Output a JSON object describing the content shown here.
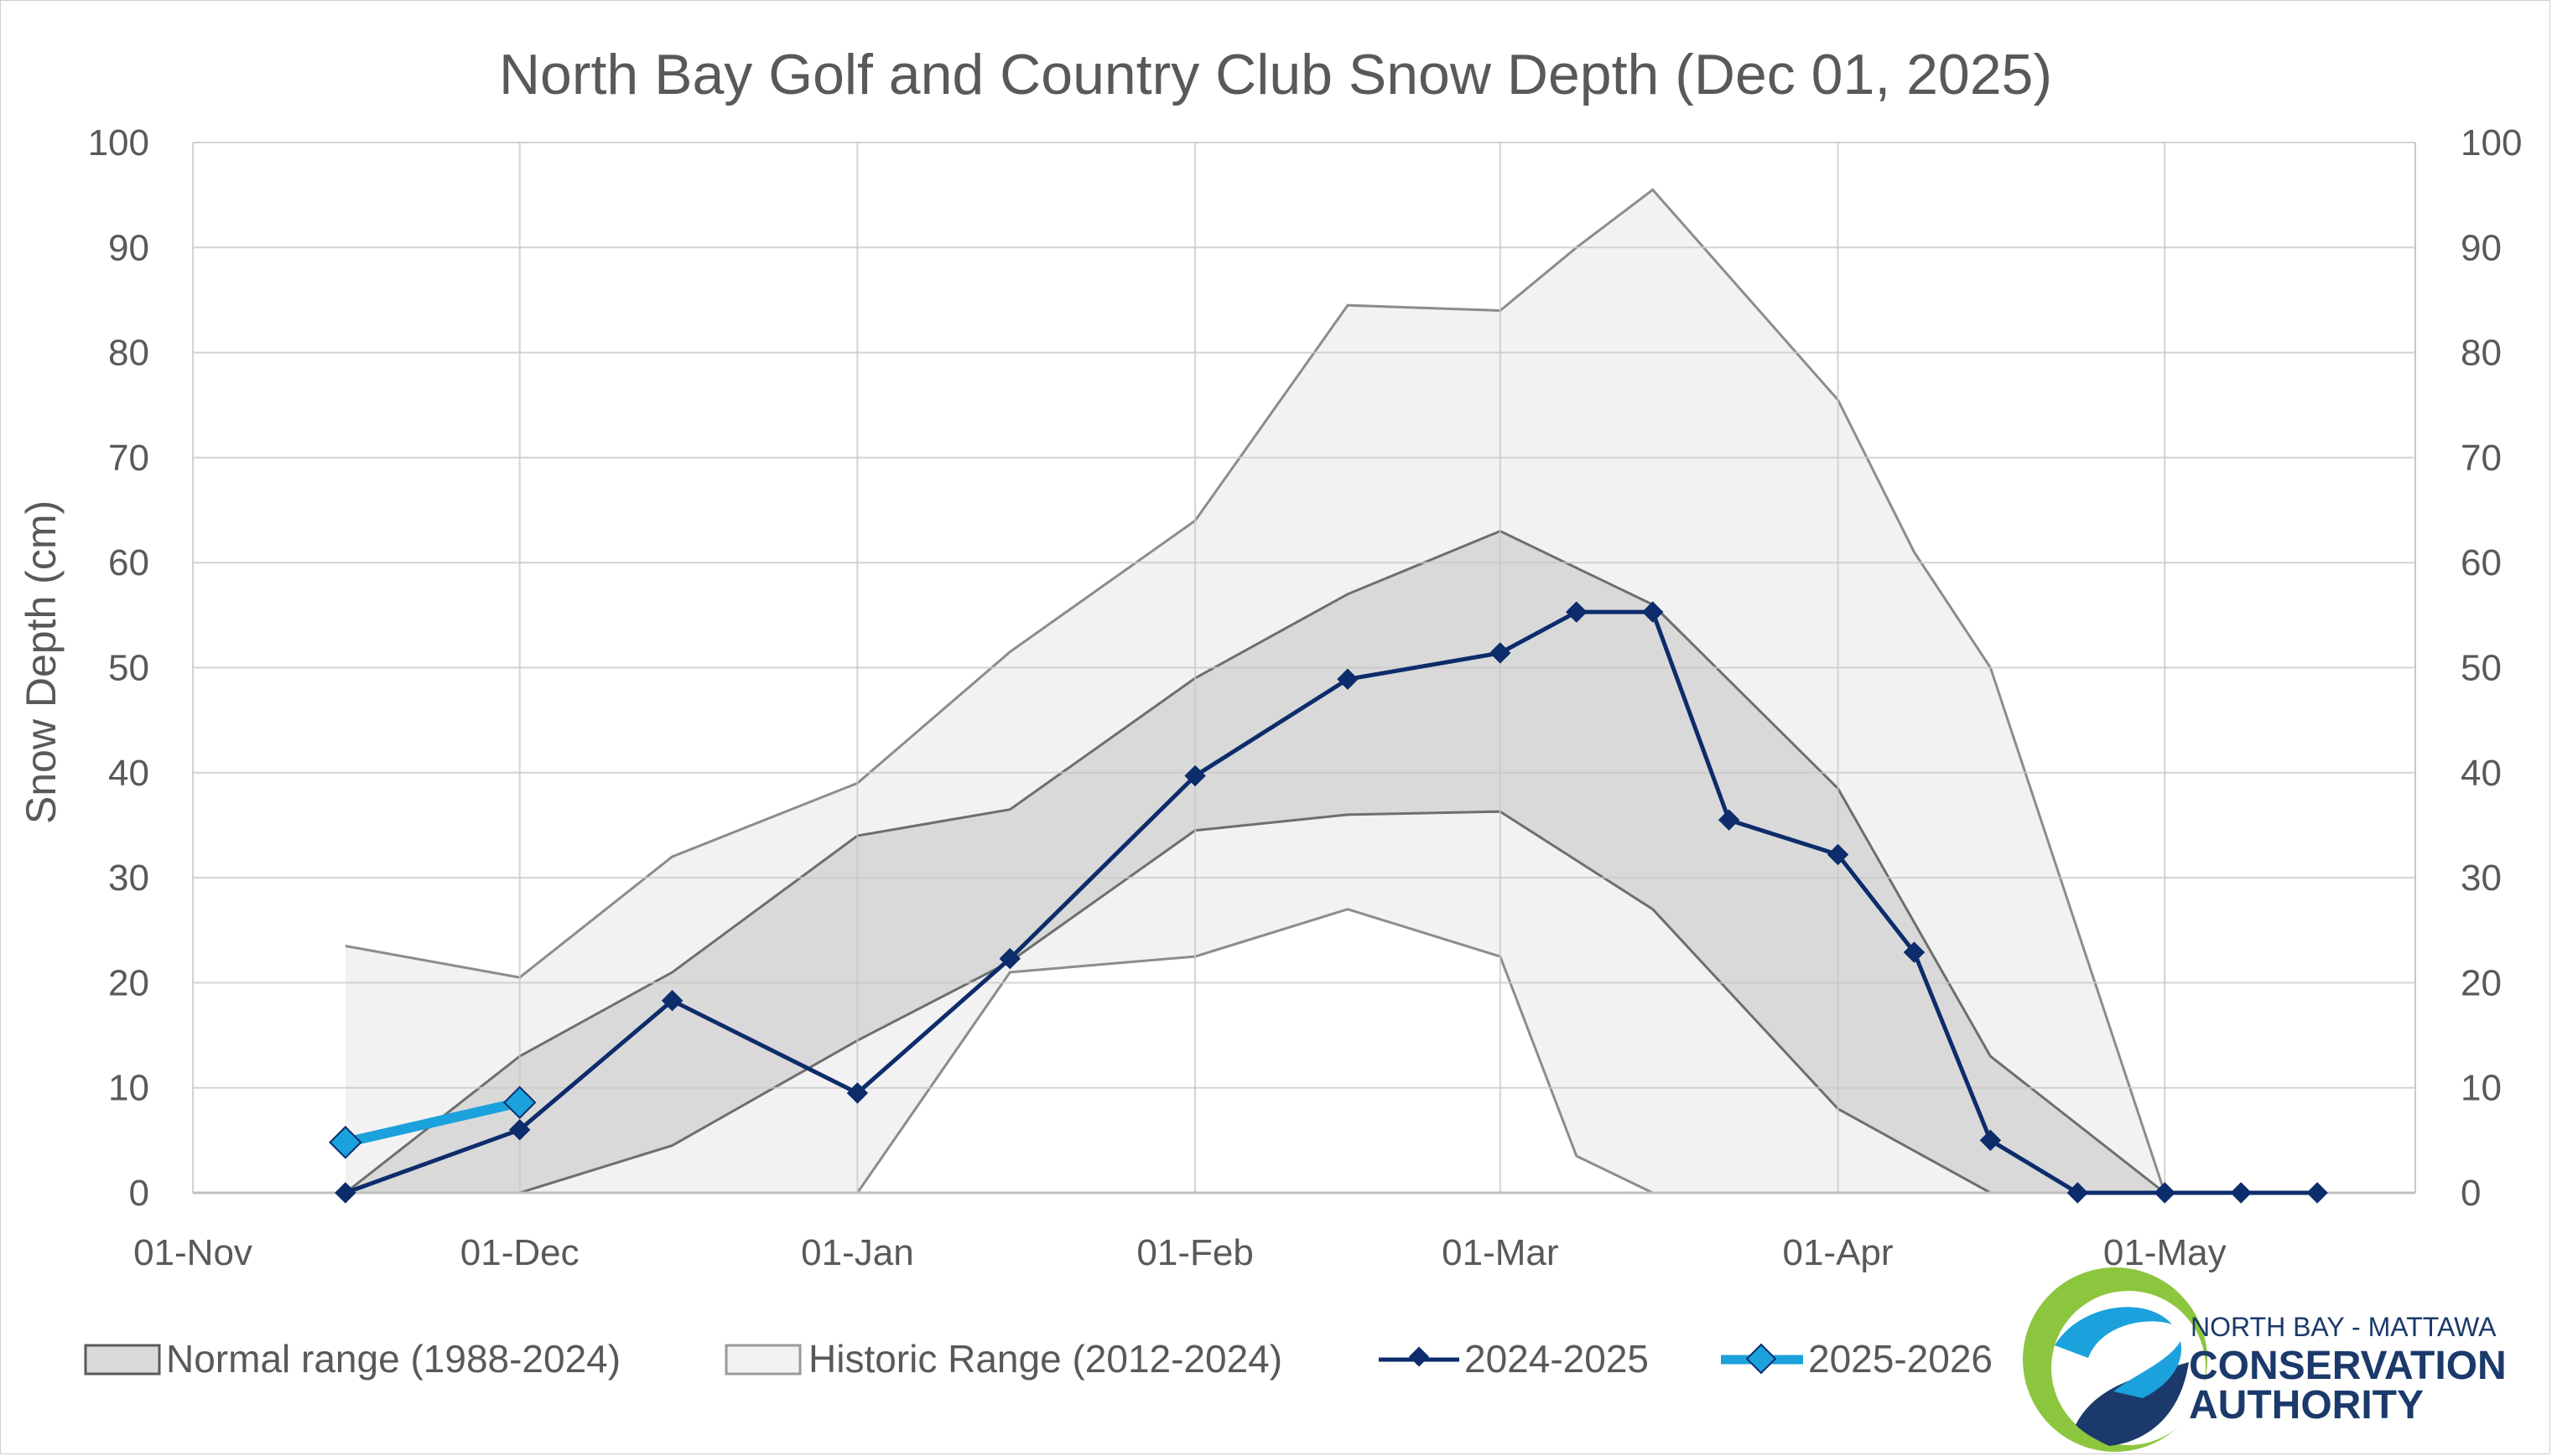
{
  "chart_data": {
    "type": "line",
    "title": "North Bay Golf and Country Club Snow Depth (Dec 01, 2025)",
    "ylabel": "Snow Depth (cm)",
    "xlabel": "",
    "ylim": [
      0,
      100
    ],
    "y_ticks": [
      0,
      10,
      20,
      30,
      40,
      50,
      60,
      70,
      80,
      90,
      100
    ],
    "x_range": [
      "2024-11-01",
      "2025-05-24"
    ],
    "x_ticks": [
      {
        "date": "2024-11-01",
        "label": "01-Nov"
      },
      {
        "date": "2024-12-01",
        "label": "01-Dec"
      },
      {
        "date": "2025-01-01",
        "label": "01-Jan"
      },
      {
        "date": "2025-02-01",
        "label": "01-Feb"
      },
      {
        "date": "2025-03-01",
        "label": "01-Mar"
      },
      {
        "date": "2025-04-01",
        "label": "01-Apr"
      },
      {
        "date": "2025-05-01",
        "label": "01-May"
      }
    ],
    "grid": true,
    "legend_position": "bottom",
    "historic_range": {
      "name": "Historic Range (2012-2024)",
      "color": "#f2f2f2",
      "x": [
        "2024-11-15",
        "2024-12-01",
        "2024-12-15",
        "2025-01-01",
        "2025-01-15",
        "2025-02-01",
        "2025-02-15",
        "2025-03-01",
        "2025-03-08",
        "2025-03-15",
        "2025-04-01",
        "2025-04-08",
        "2025-04-15",
        "2025-05-01"
      ],
      "upper": [
        23.5,
        20.5,
        32,
        39,
        51.5,
        64,
        84.5,
        84,
        90,
        95.5,
        75.5,
        61,
        50,
        0
      ],
      "lower": [
        0,
        0,
        0,
        0,
        21,
        22.5,
        27,
        22.5,
        3.5,
        0,
        0,
        0,
        0,
        0
      ]
    },
    "normal_range": {
      "name": "Normal range (1988-2024)",
      "color": "#d9d9d9",
      "x": [
        "2024-11-15",
        "2024-12-01",
        "2024-12-15",
        "2025-01-01",
        "2025-01-15",
        "2025-02-01",
        "2025-02-15",
        "2025-03-01",
        "2025-03-15",
        "2025-04-01",
        "2025-04-15",
        "2025-05-01"
      ],
      "upper": [
        0,
        13,
        21,
        34,
        36.5,
        49,
        57,
        63,
        56,
        38.5,
        13,
        0
      ],
      "lower": [
        0,
        0,
        4.5,
        14.5,
        22,
        34.5,
        36,
        36.3,
        27,
        8,
        0,
        0
      ]
    },
    "series": [
      {
        "name": "2024-2025",
        "color": "#0c2c6b",
        "x": [
          "2024-11-15",
          "2024-12-01",
          "2024-12-15",
          "2025-01-01",
          "2025-01-15",
          "2025-02-01",
          "2025-02-15",
          "2025-03-01",
          "2025-03-08",
          "2025-03-15",
          "2025-03-22",
          "2025-04-01",
          "2025-04-08",
          "2025-04-15",
          "2025-04-23",
          "2025-05-01",
          "2025-05-08",
          "2025-05-15"
        ],
        "values": [
          0,
          6,
          18.3,
          9.5,
          22.3,
          39.7,
          48.9,
          51.4,
          55.3,
          55.3,
          35.5,
          32.2,
          22.9,
          5,
          0,
          0,
          0,
          0
        ]
      },
      {
        "name": "2025-2026",
        "color": "#1ba1dc",
        "x": [
          "2024-11-15",
          "2024-12-01"
        ],
        "values": [
          4.8,
          8.6
        ]
      }
    ]
  },
  "logo": {
    "line1": "NORTH BAY - MATTAWA",
    "line2": "CONSERVATION",
    "line3": "AUTHORITY"
  }
}
